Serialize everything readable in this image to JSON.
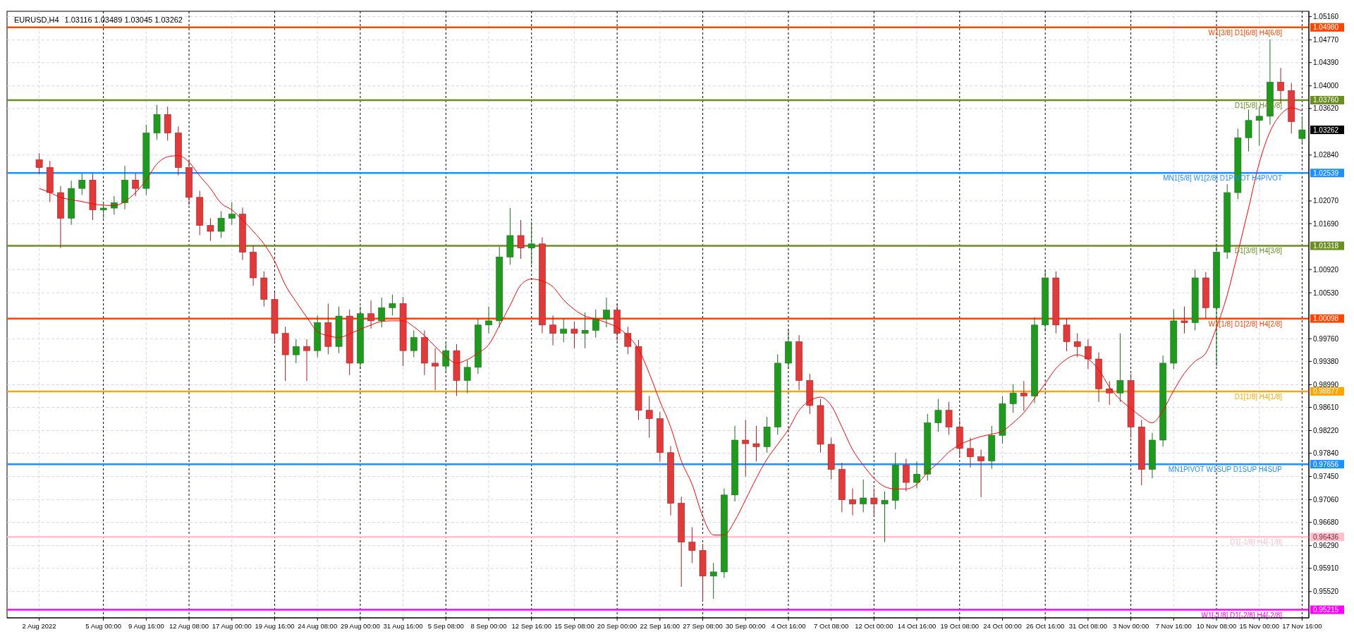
{
  "chart_data": {
    "type": "candlestick",
    "title": "EURUSD,H4",
    "subtitle": "1.03116 1.03489 1.03045 1.03262",
    "annotations": [
      "1.04980",
      "1.03760",
      "1.02539",
      "1.01318",
      "1.00098",
      "0.98877",
      "0.97656",
      "0.96436",
      "0.95215",
      "1.03262"
    ],
    "categories": [
      "2 Aug 2022",
      null,
      null,
      null,
      null,
      null,
      "5 Aug 00:00",
      null,
      null,
      null,
      "9 Aug 16:00",
      null,
      null,
      null,
      "12 Aug 08:00",
      null,
      null,
      null,
      "17 Aug 00:00",
      null,
      null,
      null,
      "19 Aug 16:00",
      null,
      null,
      null,
      "24 Aug 08:00",
      null,
      null,
      null,
      "29 Aug 00:00",
      null,
      null,
      null,
      "31 Aug 16:00",
      null,
      null,
      null,
      "5 Sep 08:00",
      null,
      null,
      null,
      "8 Sep 00:00",
      null,
      null,
      null,
      "12 Sep 16:00",
      null,
      null,
      null,
      "15 Sep 08:00",
      null,
      null,
      null,
      "20 Sep 00:00",
      null,
      null,
      null,
      "22 Sep 16:00",
      null,
      null,
      null,
      "27 Sep 08:00",
      null,
      null,
      null,
      "30 Sep 00:00",
      null,
      null,
      null,
      "4 Oct 16:00",
      null,
      null,
      null,
      "7 Oct 08:00",
      null,
      null,
      null,
      "12 Oct 00:00",
      null,
      null,
      null,
      "14 Oct 16:00",
      null,
      null,
      null,
      "19 Oct 08:00",
      null,
      null,
      null,
      "24 Oct 00:00",
      null,
      null,
      null,
      "26 Oct 16:00",
      null,
      null,
      null,
      "31 Oct 08:00",
      null,
      null,
      null,
      "3 Nov 00:00",
      null,
      null,
      null,
      "7 Nov 16:00",
      null,
      null,
      null,
      "10 Nov 08:00",
      null,
      null,
      null,
      "15 Nov 00:00",
      null,
      null,
      null,
      "17 Nov 16:00"
    ],
    "ohlc": [
      [
        1.0276,
        1.0287,
        1.0252,
        1.0263
      ],
      [
        1.0263,
        1.0274,
        1.0205,
        1.0221
      ],
      [
        1.0221,
        1.0232,
        1.0128,
        1.0178
      ],
      [
        1.0178,
        1.0241,
        1.0167,
        1.0228
      ],
      [
        1.0228,
        1.0253,
        1.0217,
        1.0242
      ],
      [
        1.0242,
        1.0253,
        1.0175,
        1.0192
      ],
      [
        1.0192,
        1.0206,
        1.0178,
        1.0195
      ],
      [
        1.0195,
        1.0215,
        1.0184,
        1.0204
      ],
      [
        1.0204,
        1.0266,
        1.0193,
        1.0242
      ],
      [
        1.0242,
        1.0253,
        1.0215,
        1.0228
      ],
      [
        1.0228,
        1.0335,
        1.0217,
        1.0321
      ],
      [
        1.0321,
        1.0368,
        1.031,
        1.0352
      ],
      [
        1.0352,
        1.0365,
        1.0308,
        1.0321
      ],
      [
        1.0321,
        1.0332,
        1.025,
        1.0263
      ],
      [
        1.0263,
        1.0274,
        1.02,
        1.0213
      ],
      [
        1.0213,
        1.0224,
        1.015,
        1.0166
      ],
      [
        1.0166,
        1.0178,
        1.014,
        1.0156
      ],
      [
        1.0156,
        1.019,
        1.0145,
        1.0178
      ],
      [
        1.0178,
        1.0205,
        1.0167,
        1.0185
      ],
      [
        1.0185,
        1.0196,
        1.0108,
        1.0121
      ],
      [
        1.0121,
        1.0132,
        1.0065,
        1.0078
      ],
      [
        1.0078,
        1.0089,
        1.003,
        1.0042
      ],
      [
        1.0042,
        1.0053,
        0.997,
        0.9985
      ],
      [
        0.9985,
        0.9996,
        0.9905,
        0.9949
      ],
      [
        0.9949,
        0.9975,
        0.9935,
        0.9963
      ],
      [
        0.9963,
        0.9975,
        0.9905,
        0.9956
      ],
      [
        0.9956,
        1.0015,
        0.9945,
        1.0003
      ],
      [
        1.0003,
        1.0035,
        0.995,
        0.9963
      ],
      [
        0.9963,
        1.003,
        0.9952,
        1.0014
      ],
      [
        1.0014,
        1.0025,
        0.9915,
        0.9935
      ],
      [
        0.9935,
        1.003,
        0.9925,
        1.0018
      ],
      [
        1.0018,
        1.004,
        0.9993,
        1.0006
      ],
      [
        1.0006,
        1.0045,
        0.9995,
        1.0028
      ],
      [
        1.0028,
        1.005,
        1.0015,
        1.0035
      ],
      [
        1.0035,
        1.0046,
        0.993,
        0.9956
      ],
      [
        0.9956,
        0.999,
        0.9945,
        0.9978
      ],
      [
        0.9978,
        0.999,
        0.9915,
        0.9935
      ],
      [
        0.9935,
        0.996,
        0.989,
        0.993
      ],
      [
        0.993,
        0.997,
        0.9918,
        0.9956
      ],
      [
        0.9956,
        0.9967,
        0.988,
        0.9906
      ],
      [
        0.9906,
        0.994,
        0.9885,
        0.9928
      ],
      [
        0.9928,
        1.001,
        0.9917,
        0.9999
      ],
      [
        0.9999,
        1.003,
        0.9985,
        1.0006
      ],
      [
        1.0006,
        1.013,
        0.9995,
        1.0113
      ],
      [
        1.0113,
        1.0195,
        1.01,
        1.0149
      ],
      [
        1.0149,
        1.0175,
        1.011,
        1.0128
      ],
      [
        1.0128,
        1.0172,
        1.01,
        1.0135
      ],
      [
        1.0135,
        1.0146,
        0.9985,
        0.9999
      ],
      [
        0.9999,
        1.0015,
        0.9965,
        0.9985
      ],
      [
        0.9985,
        1.001,
        0.997,
        0.9992
      ],
      [
        0.9992,
        1.0005,
        0.996,
        0.9985
      ],
      [
        0.9985,
        1.002,
        0.996,
        0.999
      ],
      [
        0.999,
        1.0025,
        0.9978,
        1.0009
      ],
      [
        1.0009,
        1.0045,
        0.9995,
        1.0024
      ],
      [
        1.0024,
        1.0035,
        0.9972,
        0.9985
      ],
      [
        0.9985,
        0.9996,
        0.995,
        0.9963
      ],
      [
        0.9963,
        0.9974,
        0.984,
        0.9856
      ],
      [
        0.9856,
        0.988,
        0.981,
        0.9842
      ],
      [
        0.9842,
        0.9853,
        0.977,
        0.9785
      ],
      [
        0.9785,
        0.9796,
        0.968,
        0.97
      ],
      [
        0.97,
        0.9711,
        0.956,
        0.9635
      ],
      [
        0.9635,
        0.966,
        0.96,
        0.9621
      ],
      [
        0.9621,
        0.9632,
        0.9535,
        0.9578
      ],
      [
        0.9578,
        0.96,
        0.954,
        0.9585
      ],
      [
        0.9585,
        0.9725,
        0.9575,
        0.9714
      ],
      [
        0.9714,
        0.983,
        0.9703,
        0.9806
      ],
      [
        0.9806,
        0.984,
        0.9745,
        0.98
      ],
      [
        0.98,
        0.983,
        0.977,
        0.9795
      ],
      [
        0.9795,
        0.9845,
        0.9785,
        0.9828
      ],
      [
        0.9828,
        0.995,
        0.9815,
        0.9935
      ],
      [
        0.9935,
        0.9992,
        0.9925,
        0.9971
      ],
      [
        0.9971,
        0.9982,
        0.989,
        0.9906
      ],
      [
        0.9906,
        0.9917,
        0.985,
        0.9864
      ],
      [
        0.9864,
        0.9875,
        0.9785,
        0.9799
      ],
      [
        0.9799,
        0.981,
        0.974,
        0.9757
      ],
      [
        0.9757,
        0.9768,
        0.9685,
        0.9706
      ],
      [
        0.9706,
        0.9725,
        0.968,
        0.9699
      ],
      [
        0.9699,
        0.974,
        0.9685,
        0.9709
      ],
      [
        0.9709,
        0.9725,
        0.968,
        0.9699
      ],
      [
        0.9699,
        0.972,
        0.9635,
        0.9705
      ],
      [
        0.9705,
        0.9785,
        0.969,
        0.9764
      ],
      [
        0.9764,
        0.9775,
        0.972,
        0.9735
      ],
      [
        0.9735,
        0.977,
        0.9725,
        0.9749
      ],
      [
        0.9749,
        0.985,
        0.9738,
        0.9835
      ],
      [
        0.9835,
        0.9875,
        0.982,
        0.9856
      ],
      [
        0.9856,
        0.987,
        0.9815,
        0.9828
      ],
      [
        0.9828,
        0.984,
        0.9778,
        0.9792
      ],
      [
        0.9792,
        0.981,
        0.976,
        0.9778
      ],
      [
        0.9778,
        0.979,
        0.971,
        0.9771
      ],
      [
        0.9771,
        0.983,
        0.9758,
        0.9814
      ],
      [
        0.9814,
        0.988,
        0.98,
        0.9867
      ],
      [
        0.9867,
        0.99,
        0.9852,
        0.9885
      ],
      [
        0.9885,
        0.9905,
        0.9855,
        0.988
      ],
      [
        0.988,
        1.0012,
        0.9868,
        0.9999
      ],
      [
        0.9999,
        1.0092,
        0.9988,
        1.0078
      ],
      [
        1.0078,
        1.0089,
        0.9985,
        0.9999
      ],
      [
        0.9999,
        1.001,
        0.9955,
        0.9971
      ],
      [
        0.9971,
        0.9985,
        0.9945,
        0.9963
      ],
      [
        0.9963,
        0.9975,
        0.9925,
        0.9942
      ],
      [
        0.9942,
        0.9953,
        0.987,
        0.9892
      ],
      [
        0.9892,
        0.9905,
        0.9865,
        0.9885
      ],
      [
        0.9885,
        0.9985,
        0.987,
        0.9906
      ],
      [
        0.9906,
        0.9917,
        0.981,
        0.9828
      ],
      [
        0.9828,
        0.984,
        0.973,
        0.9757
      ],
      [
        0.9757,
        0.9818,
        0.9742,
        0.9806
      ],
      [
        0.9806,
        0.9948,
        0.9795,
        0.9935
      ],
      [
        0.9935,
        1.0025,
        0.9925,
        1.0006
      ],
      [
        1.0006,
        1.003,
        0.9985,
        1.0003
      ],
      [
        1.0003,
        1.0092,
        0.999,
        1.0078
      ],
      [
        1.0078,
        1.0088,
        1.001,
        1.0028
      ],
      [
        1.0028,
        1.0135,
        0.993,
        1.0121
      ],
      [
        1.0121,
        1.0235,
        1.011,
        1.0221
      ],
      [
        1.0221,
        1.0328,
        1.021,
        1.0313
      ],
      [
        1.0313,
        1.036,
        1.029,
        1.0342
      ],
      [
        1.0342,
        1.0365,
        1.03,
        1.0349
      ],
      [
        1.0349,
        1.0478,
        1.0335,
        1.0406
      ],
      [
        1.0406,
        1.043,
        1.037,
        1.0392
      ],
      [
        1.0392,
        1.0405,
        1.032,
        1.034
      ],
      [
        1.03116,
        1.03489,
        1.03045,
        1.03262
      ]
    ],
    "series": [
      {
        "type": "line",
        "color": "#ff0000",
        "values": [
          1.0228,
          1.0221,
          1.0213,
          1.0209,
          1.0206,
          1.0202,
          1.02,
          1.0199,
          1.0206,
          1.0221,
          1.0242,
          1.0269,
          1.0281,
          1.0283,
          1.0272,
          1.0249,
          1.0228,
          1.0203,
          1.0192,
          1.0175,
          1.0156,
          1.0135,
          1.0106,
          1.0066,
          1.0038,
          1.0012,
          0.9988,
          0.9981,
          0.9978,
          0.9984,
          0.9992,
          0.9999,
          1.0005,
          1.0006,
          1.0006,
          0.9996,
          0.9981,
          0.9963,
          0.9946,
          0.9935,
          0.9941,
          0.9952,
          0.9966,
          0.9998,
          1.0032,
          1.0066,
          1.0076,
          1.0073,
          1.0063,
          1.0041,
          1.0025,
          1.0014,
          1.0009,
          1.0003,
          0.9995,
          0.9981,
          0.9958,
          0.9918,
          0.9871,
          0.9828,
          0.9771,
          0.9732,
          0.9678,
          0.9647,
          0.9647,
          0.9671,
          0.9706,
          0.9742,
          0.9774,
          0.9799,
          0.9824,
          0.9856,
          0.9872,
          0.9878,
          0.9864,
          0.9828,
          0.979,
          0.9764,
          0.9742,
          0.9728,
          0.9724,
          0.9724,
          0.9732,
          0.9752,
          0.9768,
          0.9786,
          0.9798,
          0.9806,
          0.9812,
          0.9816,
          0.9821,
          0.9835,
          0.9852,
          0.9876,
          0.9901,
          0.9926,
          0.9942,
          0.9949,
          0.9942,
          0.9924,
          0.9895,
          0.9874,
          0.9859,
          0.9845,
          0.9835,
          0.9856,
          0.9889,
          0.9918,
          0.9938,
          0.9952,
          0.9995,
          1.0049,
          1.0121,
          1.0195,
          1.0271,
          1.0323,
          1.0352,
          1.0363,
          1.0358
        ]
      }
    ],
    "ylim": [
      0.9508,
      1.0525
    ],
    "yticks": [
      {
        "value": 1.0516,
        "label": "1.05160"
      },
      {
        "value": 1.0477,
        "label": "1.04770"
      },
      {
        "value": 1.0439,
        "label": "1.04390"
      },
      {
        "value": 1.04,
        "label": "1.04000"
      },
      {
        "value": 1.0362,
        "label": "1.03620"
      },
      {
        "value": 1.0284,
        "label": "1.02840"
      },
      {
        "value": 1.0207,
        "label": "1.02070"
      },
      {
        "value": 1.0169,
        "label": "1.01690"
      },
      {
        "value": 1.0092,
        "label": "1.00920"
      },
      {
        "value": 1.0053,
        "label": "1.00530"
      },
      {
        "value": 0.9976,
        "label": "0.99760"
      },
      {
        "value": 0.9938,
        "label": "0.99380"
      },
      {
        "value": 0.9899,
        "label": "0.98990"
      },
      {
        "value": 0.9861,
        "label": "0.98610"
      },
      {
        "value": 0.9822,
        "label": "0.98220"
      },
      {
        "value": 0.9784,
        "label": "0.97840"
      },
      {
        "value": 0.9745,
        "label": "0.97450"
      },
      {
        "value": 0.9706,
        "label": "0.97060"
      },
      {
        "value": 0.9668,
        "label": "0.96680"
      },
      {
        "value": 0.9629,
        "label": "0.96290"
      },
      {
        "value": 0.9591,
        "label": "0.95910"
      },
      {
        "value": 0.9552,
        "label": "0.95520"
      }
    ],
    "ref_lines": [
      {
        "axis": "y",
        "value": 1.0498,
        "label": "W1[3/8] D1[6/8] H4[6/8]",
        "color": "#ff4500"
      },
      {
        "axis": "y",
        "value": 1.0376,
        "label": "D1[5/8] H4[5/8]",
        "color": "#6b8e23"
      },
      {
        "axis": "y",
        "value": 1.02539,
        "label": "MN1[5/8] W1[2/8] D1PIVOT H4PIVOT",
        "color": "#1e90ff"
      },
      {
        "axis": "y",
        "value": 1.01318,
        "label": "D1[3/8] H4[3/8]",
        "color": "#6b8e23"
      },
      {
        "axis": "y",
        "value": 1.00098,
        "label": "W1[1/8] D1[2/8] H4[2/8]",
        "color": "#ff4500"
      },
      {
        "axis": "y",
        "value": 0.98877,
        "label": "D1[1/8] H4[1/8]",
        "color": "#ffa500"
      },
      {
        "axis": "y",
        "value": 0.97656,
        "label": "MN1PIVOT W1SUP D1SUP H4SUP",
        "color": "#1e90ff"
      },
      {
        "axis": "y",
        "value": 0.96436,
        "label": "D1[-1/8] H4[-1/8]",
        "color": "#ffc0cb"
      },
      {
        "axis": "y",
        "value": 0.95215,
        "label": "W1[-1/8] D1[-2/8] H4[-2/8]",
        "color": "#ff00ff"
      }
    ],
    "grid": true
  }
}
